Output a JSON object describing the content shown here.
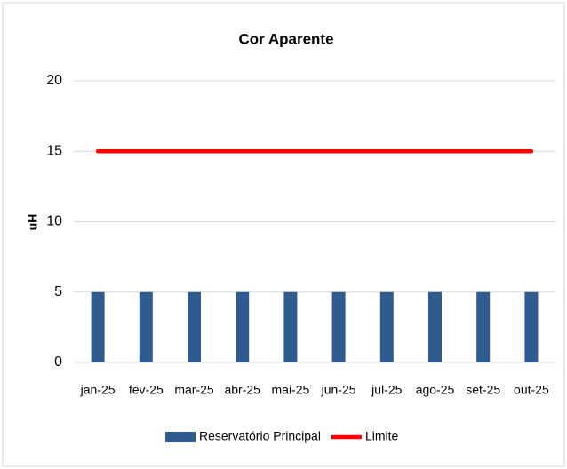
{
  "chart_data": {
    "type": "bar",
    "title": "Cor Aparente",
    "y_label": "uH",
    "categories": [
      "jan-25",
      "fev-25",
      "mar-25",
      "abr-25",
      "mai-25",
      "jun-25",
      "jul-25",
      "ago-25",
      "set-25",
      "out-25"
    ],
    "series": [
      {
        "name": "Reservatório Principal",
        "type": "bar",
        "color": "#2f5b8f",
        "values": [
          5,
          5,
          5,
          5,
          5,
          5,
          5,
          5,
          5,
          5
        ]
      },
      {
        "name": "Limite",
        "type": "line",
        "color": "#ff0000",
        "values": [
          15,
          15,
          15,
          15,
          15,
          15,
          15,
          15,
          15,
          15
        ]
      }
    ],
    "ylim": [
      0,
      20
    ],
    "yticks": [
      0,
      5,
      10,
      15,
      20
    ],
    "grid": true,
    "legend": "bottom"
  }
}
